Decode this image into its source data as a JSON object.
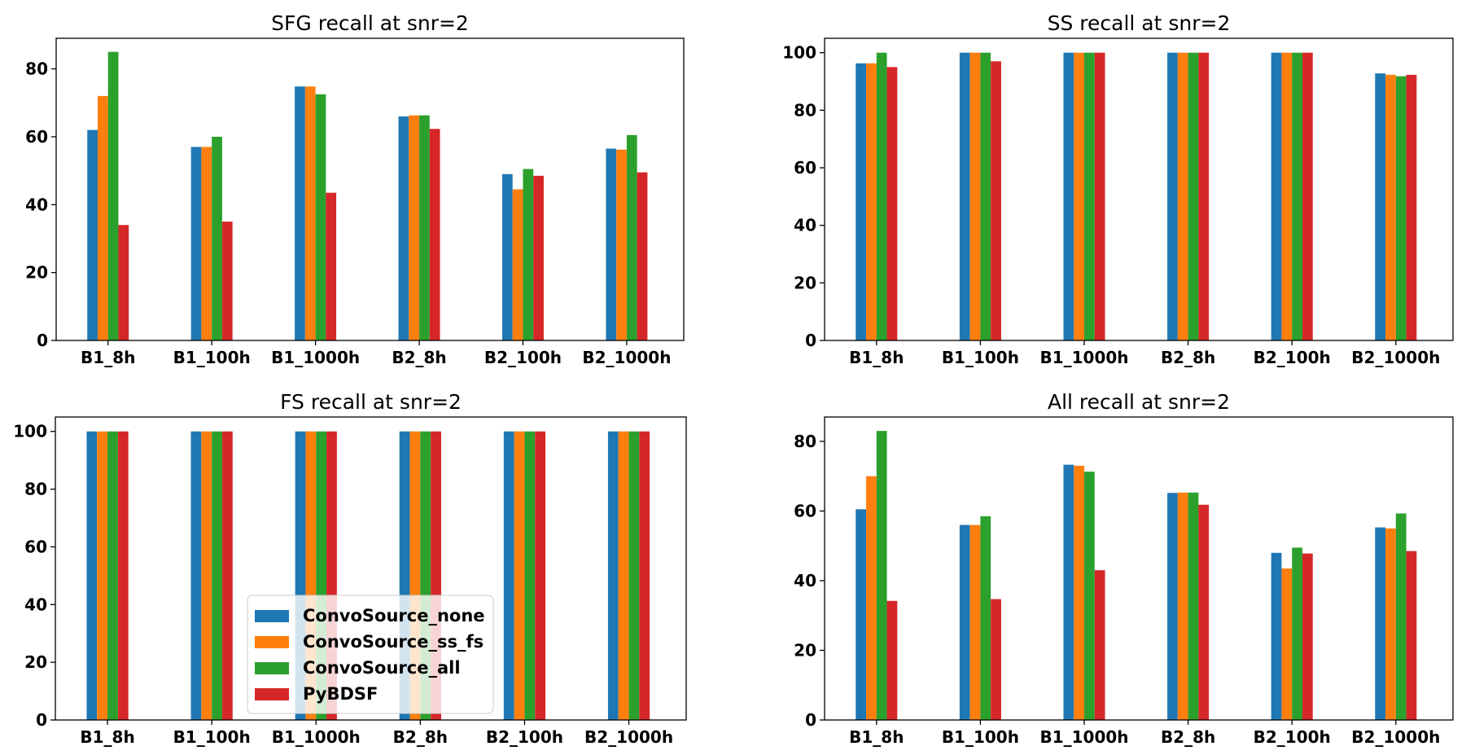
{
  "chart_data": [
    {
      "type": "bar",
      "title": "SFG recall at snr=2",
      "xlabel": "",
      "ylabel": "",
      "categories": [
        "B1_8h",
        "B1_100h",
        "B1_1000h",
        "B2_8h",
        "B2_100h",
        "B2_1000h"
      ],
      "ylim": [
        0,
        89
      ],
      "yticks": [
        0,
        20,
        40,
        60,
        80
      ],
      "series": [
        {
          "name": "ConvoSource_none",
          "values": [
            62,
            57,
            74.8,
            66,
            49,
            56.5
          ]
        },
        {
          "name": "ConvoSource_ss_fs",
          "values": [
            72,
            57,
            74.8,
            66.3,
            44.5,
            56.2
          ]
        },
        {
          "name": "ConvoSource_all",
          "values": [
            85,
            60,
            72.5,
            66.3,
            50.5,
            60.5
          ]
        },
        {
          "name": "PyBDSF",
          "values": [
            34,
            35,
            43.5,
            62.3,
            48.5,
            49.5
          ]
        }
      ]
    },
    {
      "type": "bar",
      "title": "SS recall at snr=2",
      "xlabel": "",
      "ylabel": "",
      "categories": [
        "B1_8h",
        "B1_100h",
        "B1_1000h",
        "B2_8h",
        "B2_100h",
        "B2_1000h"
      ],
      "ylim": [
        0,
        105
      ],
      "yticks": [
        0,
        20,
        40,
        60,
        80,
        100
      ],
      "series": [
        {
          "name": "ConvoSource_none",
          "values": [
            96.3,
            100,
            100,
            100,
            100,
            92.8
          ]
        },
        {
          "name": "ConvoSource_ss_fs",
          "values": [
            96.3,
            100,
            100,
            100,
            100,
            92.3
          ]
        },
        {
          "name": "ConvoSource_all",
          "values": [
            100,
            100,
            100,
            100,
            100,
            91.8
          ]
        },
        {
          "name": "PyBDSF",
          "values": [
            95,
            97,
            100,
            100,
            100,
            92.3
          ]
        }
      ]
    },
    {
      "type": "bar",
      "title": "FS recall at snr=2",
      "xlabel": "",
      "ylabel": "",
      "categories": [
        "B1_8h",
        "B1_100h",
        "B1_1000h",
        "B2_8h",
        "B2_100h",
        "B2_1000h"
      ],
      "ylim": [
        0,
        105
      ],
      "yticks": [
        0,
        20,
        40,
        60,
        80,
        100
      ],
      "legend_position": "lower center",
      "series": [
        {
          "name": "ConvoSource_none",
          "values": [
            100,
            100,
            100,
            100,
            100,
            100
          ]
        },
        {
          "name": "ConvoSource_ss_fs",
          "values": [
            100,
            100,
            100,
            100,
            100,
            100
          ]
        },
        {
          "name": "ConvoSource_all",
          "values": [
            100,
            100,
            100,
            100,
            100,
            100
          ]
        },
        {
          "name": "PyBDSF",
          "values": [
            100,
            100,
            100,
            100,
            100,
            100
          ]
        }
      ]
    },
    {
      "type": "bar",
      "title": "All recall at snr=2",
      "xlabel": "",
      "ylabel": "",
      "categories": [
        "B1_8h",
        "B1_100h",
        "B1_1000h",
        "B2_8h",
        "B2_100h",
        "B2_1000h"
      ],
      "ylim": [
        0,
        87
      ],
      "yticks": [
        0,
        20,
        40,
        60,
        80
      ],
      "series": [
        {
          "name": "ConvoSource_none",
          "values": [
            60.5,
            56,
            73.3,
            65.2,
            48,
            55.3
          ]
        },
        {
          "name": "ConvoSource_ss_fs",
          "values": [
            70,
            56,
            73,
            65.3,
            43.5,
            55
          ]
        },
        {
          "name": "ConvoSource_all",
          "values": [
            83,
            58.5,
            71.3,
            65.3,
            49.5,
            59.3
          ]
        },
        {
          "name": "PyBDSF",
          "values": [
            34.2,
            34.7,
            43,
            61.8,
            47.8,
            48.5
          ]
        }
      ]
    }
  ],
  "colors": {
    "ConvoSource_none": "#1f77b4",
    "ConvoSource_ss_fs": "#ff7f0e",
    "ConvoSource_all": "#2ca02c",
    "PyBDSF": "#d62728"
  },
  "legend": {
    "items": [
      "ConvoSource_none",
      "ConvoSource_ss_fs",
      "ConvoSource_all",
      "PyBDSF"
    ]
  }
}
